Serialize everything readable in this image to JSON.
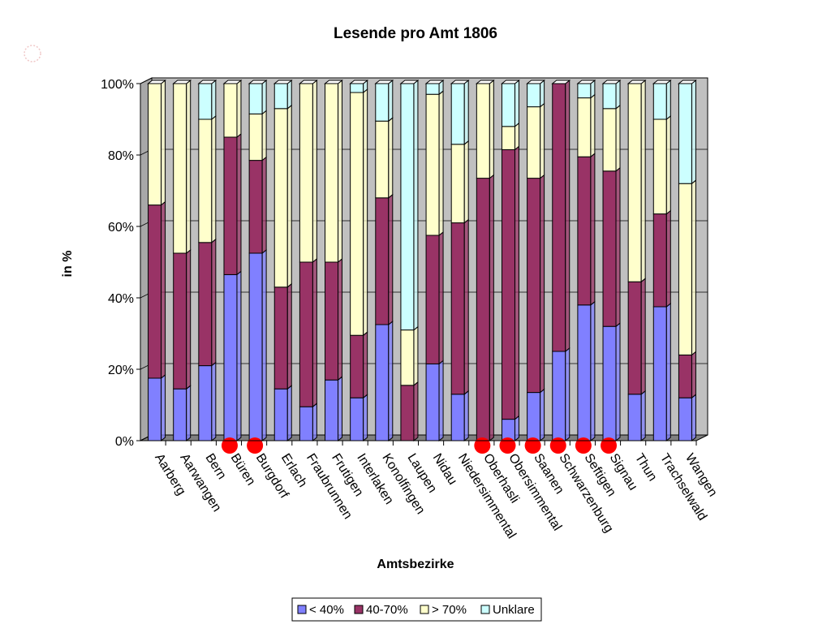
{
  "chart_data": {
    "type": "bar",
    "stacked": true,
    "percent_stacked": true,
    "title": "Lesende pro Amt 1806",
    "xlabel": "Amtsbezirke",
    "ylabel": "in %",
    "ylim": [
      0,
      100
    ],
    "yticks": [
      "0%",
      "20%",
      "40%",
      "60%",
      "80%",
      "100%"
    ],
    "grid": true,
    "legend_position": "bottom",
    "categories": [
      "Aarberg",
      "Aarwangen",
      "Bern",
      "Büren",
      "Burgdorf",
      "Erlach",
      "Fraubrunnen",
      "Frutigen",
      "Interlaken",
      "Konolfingen",
      "Laupen",
      "Nidau",
      "Niedersimmental",
      "Oberhasli",
      "Obersimmental",
      "Saanen",
      "Schwarzenburg",
      "Seftigen",
      "Signau",
      "Thun",
      "Trachselwald",
      "Wangen"
    ],
    "series": [
      {
        "name": "< 40%",
        "color": "#8080ff",
        "values": [
          17.5,
          14.5,
          21,
          46.5,
          52.5,
          14.5,
          9.5,
          17,
          12,
          32.5,
          0,
          21.5,
          13,
          0,
          6,
          13.5,
          25,
          38,
          32,
          13,
          37.5,
          12
        ]
      },
      {
        "name": "40-70%",
        "color": "#993366",
        "values": [
          48.5,
          38,
          34.5,
          38.5,
          26,
          28.5,
          40.5,
          33,
          17.5,
          35.5,
          15.5,
          36,
          48,
          73.5,
          75.5,
          60,
          75,
          41.5,
          43.5,
          31.5,
          26,
          12
        ]
      },
      {
        "name": "> 70%",
        "color": "#ffffcc",
        "values": [
          34,
          47.5,
          34.5,
          15,
          13,
          50,
          50,
          50,
          68,
          21.5,
          15.5,
          39.5,
          22,
          26.5,
          6.5,
          20,
          0,
          16.5,
          17.5,
          55.5,
          26.5,
          48
        ]
      },
      {
        "name": "Unklare",
        "color": "#ccffff",
        "values": [
          0,
          0,
          10,
          0,
          8.5,
          7,
          0,
          0,
          2.5,
          10.5,
          69,
          3,
          17,
          0,
          12,
          6.5,
          0,
          4,
          7,
          0,
          10,
          28
        ]
      }
    ],
    "highlighted_categories": [
      "Büren",
      "Burgdorf",
      "Oberhasli",
      "Obersimmental",
      "Saanen",
      "Schwarzenburg",
      "Seftigen",
      "Signau"
    ],
    "highlight_color": "#ff0000",
    "wall_color": "#c0c0c0",
    "floor_color": "#808080"
  }
}
